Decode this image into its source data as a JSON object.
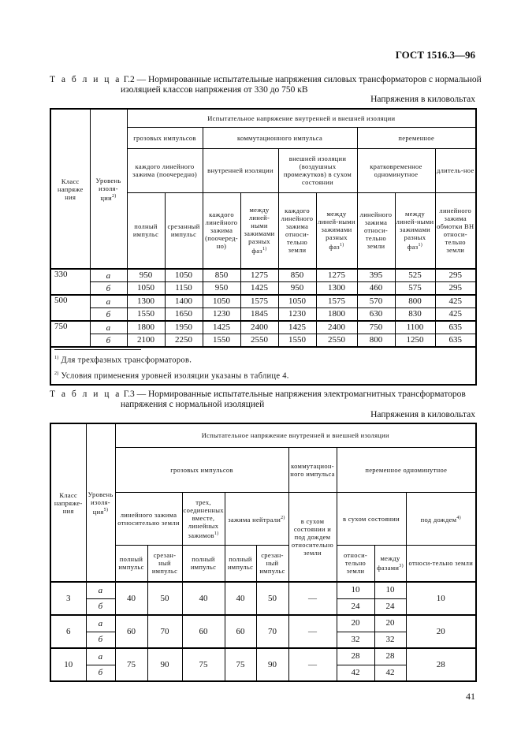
{
  "header": "ГОСТ 1516.3—96",
  "page_number": "41",
  "table1": {
    "label": "Т а б л и ц а",
    "caption_line1": "Г.2 — Нормированные испытательные напряжения силовых трансформаторов с нормальной",
    "caption_line2": "изоляцией классов напряжения от 330 до 750 кВ",
    "units": "Напряжения в киловольтах",
    "h_class": "Класс напряже ния",
    "h_level": "Уровень изоля-ции",
    "h_level_sup": "2)",
    "h_test": "Испытательное напряжение внутренней и внешней изоляции",
    "h_lightning": "грозовых импульсов",
    "h_switching": "коммутационного импульса",
    "h_ac": "переменное",
    "h_each_line": "каждого линейного зажима (поочередно)",
    "h_internal": "внутренней изоляции",
    "h_external": "внешней изоляции (воздушных промежутков) в сухом состоянии",
    "h_short": "кратковременное одноминутное",
    "h_long": "длитель-ное",
    "cols": [
      "полный импульс",
      "срезанный импульс",
      "каждого линейного зажима (поочеред-но)",
      "между линей-ными зажимами разных фаз",
      "каждого линейного зажима относи-тельно земли",
      "между линей-ными зажимами разных фаз",
      "линейного зажима относи-тельно земли",
      "между линей-ными зажимами разных фаз",
      "линейного зажима обмотки ВН относи-тельно земли"
    ],
    "col_sups": [
      "",
      "",
      "",
      "1)",
      "",
      "1)",
      "",
      "1)",
      ""
    ],
    "rows": [
      {
        "class": "330",
        "level": "а",
        "values": [
          "950",
          "1050",
          "850",
          "1275",
          "850",
          "1275",
          "395",
          "525",
          "295"
        ]
      },
      {
        "class": "",
        "level": "б",
        "values": [
          "1050",
          "1150",
          "950",
          "1425",
          "950",
          "1300",
          "460",
          "575",
          "295"
        ]
      },
      {
        "class": "500",
        "level": "а",
        "values": [
          "1300",
          "1400",
          "1050",
          "1575",
          "1050",
          "1575",
          "570",
          "800",
          "425"
        ]
      },
      {
        "class": "",
        "level": "б",
        "values": [
          "1550",
          "1650",
          "1230",
          "1845",
          "1230",
          "1800",
          "630",
          "830",
          "425"
        ]
      },
      {
        "class": "750",
        "level": "а",
        "values": [
          "1800",
          "1950",
          "1425",
          "2400",
          "1425",
          "2400",
          "750",
          "1100",
          "635"
        ]
      },
      {
        "class": "",
        "level": "б",
        "values": [
          "2100",
          "2250",
          "1550",
          "2550",
          "1550",
          "2550",
          "800",
          "1250",
          "635"
        ]
      }
    ],
    "footnotes": [
      {
        "mark": "1)",
        "text": "Для трехфазных трансформаторов."
      },
      {
        "mark": "2)",
        "text": "Условия применения уровней изоляции указаны в таблице 4."
      }
    ]
  },
  "table2": {
    "label": "Т а б л и ц а",
    "caption_line1": "Г.3 — Нормированные испытательные напряжения электромагнитных трансформаторов",
    "caption_line2": "напряжения с нормальной изоляцией",
    "units": "Напряжения в киловольтах",
    "h_class": "Класс напряже-ния",
    "h_level": "Уровень изоля-ция",
    "h_level_sup": "5)",
    "h_test": "Испытательное напряжение внутренней и внешней изоляции",
    "h_lightning": "грозовых импульсов",
    "h_switching": "коммутацион-ного импульса",
    "h_ac": "переменное одноминутное",
    "h_line_earth": "линейного зажима относительно земли",
    "h_three": "трех, соединенных вместе, линейных зажимов",
    "h_three_sup": "1)",
    "h_neutral": "зажима нейтрали",
    "h_neutral_sup": "2)",
    "h_dry_rain": "в сухом состоянии и под дождем относительно земли",
    "h_dry": "в сухом состоянии",
    "h_rain": "под дождем",
    "h_rain_sup": "4)",
    "cols": [
      "полный импульс",
      "срезан-ный импульс",
      "полный импульс",
      "полный импульс",
      "срезан-ный импульс",
      "относи-тельно земли",
      "между фазами",
      "относи-тельно земли"
    ],
    "col_sups": [
      "",
      "",
      "",
      "",
      "",
      "",
      "3)",
      ""
    ],
    "rows": [
      {
        "class": "3",
        "levels": [
          "а",
          "б"
        ],
        "values": [
          "40",
          "50",
          "40",
          "40",
          "50",
          "—"
        ],
        "dry": [
          [
            "10",
            "10"
          ],
          [
            "24",
            "24"
          ]
        ],
        "rain": "10"
      },
      {
        "class": "6",
        "levels": [
          "а",
          "б"
        ],
        "values": [
          "60",
          "70",
          "60",
          "60",
          "70",
          "—"
        ],
        "dry": [
          [
            "20",
            "20"
          ],
          [
            "32",
            "32"
          ]
        ],
        "rain": "20"
      },
      {
        "class": "10",
        "levels": [
          "а",
          "б"
        ],
        "values": [
          "75",
          "90",
          "75",
          "75",
          "90",
          "—"
        ],
        "dry": [
          [
            "28",
            "28"
          ],
          [
            "42",
            "42"
          ]
        ],
        "rain": "28"
      }
    ]
  }
}
